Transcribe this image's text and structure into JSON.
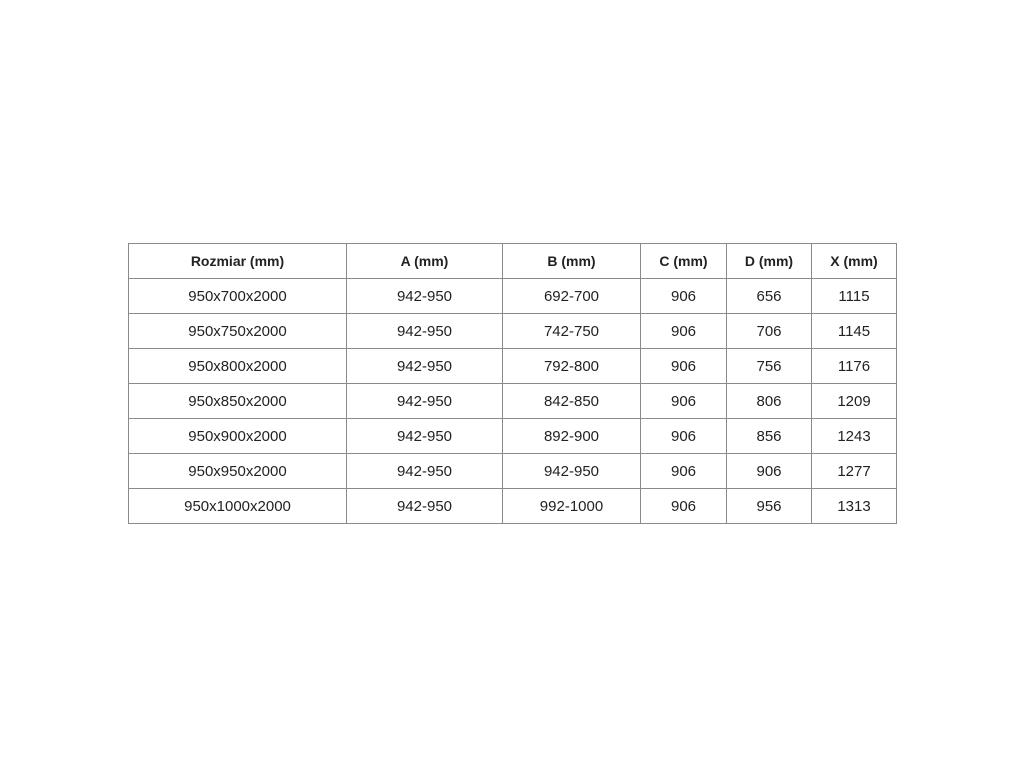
{
  "table": {
    "headers": [
      "Rozmiar (mm)",
      "A (mm)",
      "B (mm)",
      "C (mm)",
      "D (mm)",
      "X (mm)"
    ],
    "rows": [
      [
        "950x700x2000",
        "942-950",
        "692-700",
        "906",
        "656",
        "1115"
      ],
      [
        "950x750x2000",
        "942-950",
        "742-750",
        "906",
        "706",
        "1145"
      ],
      [
        "950x800x2000",
        "942-950",
        "792-800",
        "906",
        "756",
        "1176"
      ],
      [
        "950x850x2000",
        "942-950",
        "842-850",
        "906",
        "806",
        "1209"
      ],
      [
        "950x900x2000",
        "942-950",
        "892-900",
        "906",
        "856",
        "1243"
      ],
      [
        "950x950x2000",
        "942-950",
        "942-950",
        "906",
        "906",
        "1277"
      ],
      [
        "950x1000x2000",
        "942-950",
        "992-1000",
        "906",
        "956",
        "1313"
      ]
    ]
  }
}
